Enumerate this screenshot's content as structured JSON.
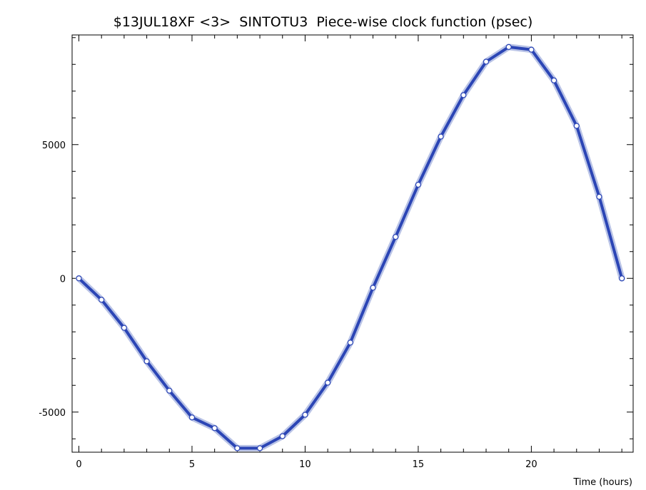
{
  "chart_data": {
    "type": "line",
    "title": "$13JUL18XF <3>  SINTOTU3  Piece-wise clock function (psec)",
    "xlabel": "Time (hours)",
    "ylabel": "",
    "xlim": [
      -0.3,
      24.5
    ],
    "ylim": [
      -6500,
      9100
    ],
    "x_ticks": [
      0,
      5,
      10,
      15,
      20
    ],
    "x_tick_labels": [
      "0",
      "5",
      "10",
      "15",
      "20"
    ],
    "y_ticks": [
      -5000,
      0,
      5000
    ],
    "y_tick_labels": [
      "-5000",
      "0",
      "5000"
    ],
    "grid": false,
    "series": [
      {
        "x": [
          0,
          1,
          2,
          3,
          4,
          5,
          6,
          7,
          8,
          9,
          10,
          11,
          12,
          13,
          14,
          15,
          16,
          17,
          18,
          19,
          20,
          21,
          22,
          23,
          24
        ],
        "values": [
          0,
          -800,
          -1850,
          -3100,
          -4200,
          -5200,
          -5600,
          -6350,
          -6350,
          -5900,
          -5100,
          -3900,
          -2400,
          -350,
          1550,
          3500,
          5300,
          6850,
          8100,
          8650,
          8550,
          7400,
          5700,
          3050,
          0
        ],
        "color": "#2b45b5",
        "band_color": "#b9c3e6"
      }
    ],
    "colors": {
      "line": "#2b45b5",
      "band": "#b9c3e6",
      "marker_fill": "#ffffff",
      "axes": "#000000"
    }
  }
}
